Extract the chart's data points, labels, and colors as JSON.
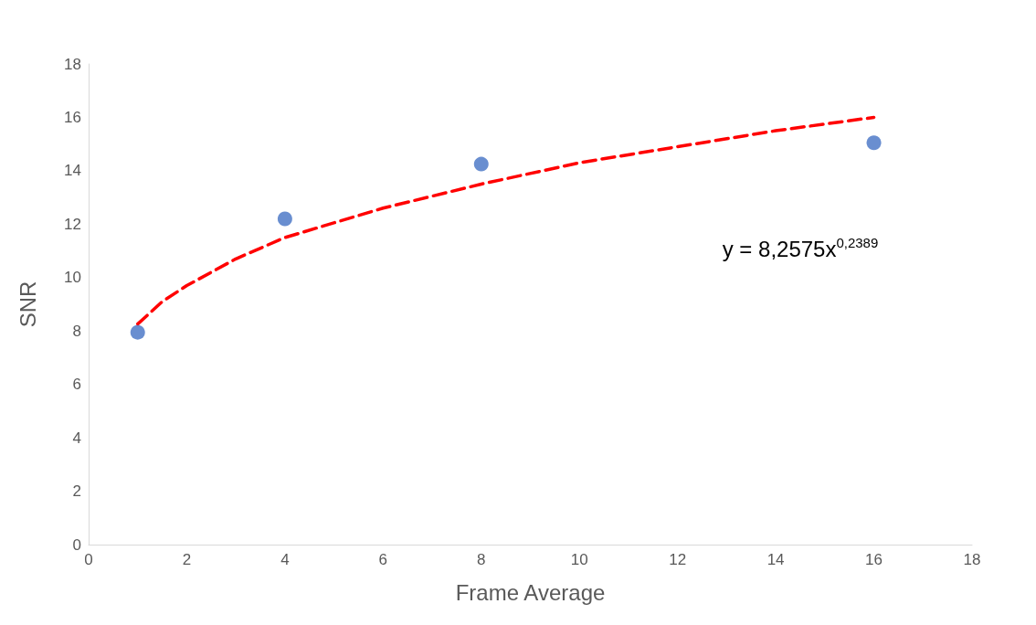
{
  "chart_data": {
    "type": "scatter",
    "xlabel": "Frame Average",
    "ylabel": "SNR",
    "series": [
      {
        "color": "#4472c4",
        "x": [
          1,
          4,
          8,
          16
        ],
        "values": [
          7.95,
          12.2,
          14.25,
          15.05
        ],
        "marker": "circle"
      },
      {
        "type": "line",
        "color": "#ff0000",
        "line_style": "dashed",
        "marker": "none",
        "x": [
          1,
          1.5,
          2,
          3,
          4,
          6,
          8,
          10,
          12,
          14,
          16
        ],
        "values": [
          8.26,
          9.1,
          9.7,
          10.7,
          11.5,
          12.6,
          13.5,
          14.3,
          14.9,
          15.5,
          16.0
        ]
      }
    ],
    "annotations": [
      "y = 8,2575x$^{0,2389}$"
    ],
    "xlim": [
      0,
      18
    ],
    "xticks": [
      0,
      2,
      4,
      6,
      8,
      10,
      12,
      14,
      16,
      18
    ],
    "ylim": [
      0,
      18
    ],
    "yticks": [
      0,
      2,
      4,
      6,
      8,
      10,
      12,
      14,
      16,
      18
    ],
    "grid": false
  }
}
